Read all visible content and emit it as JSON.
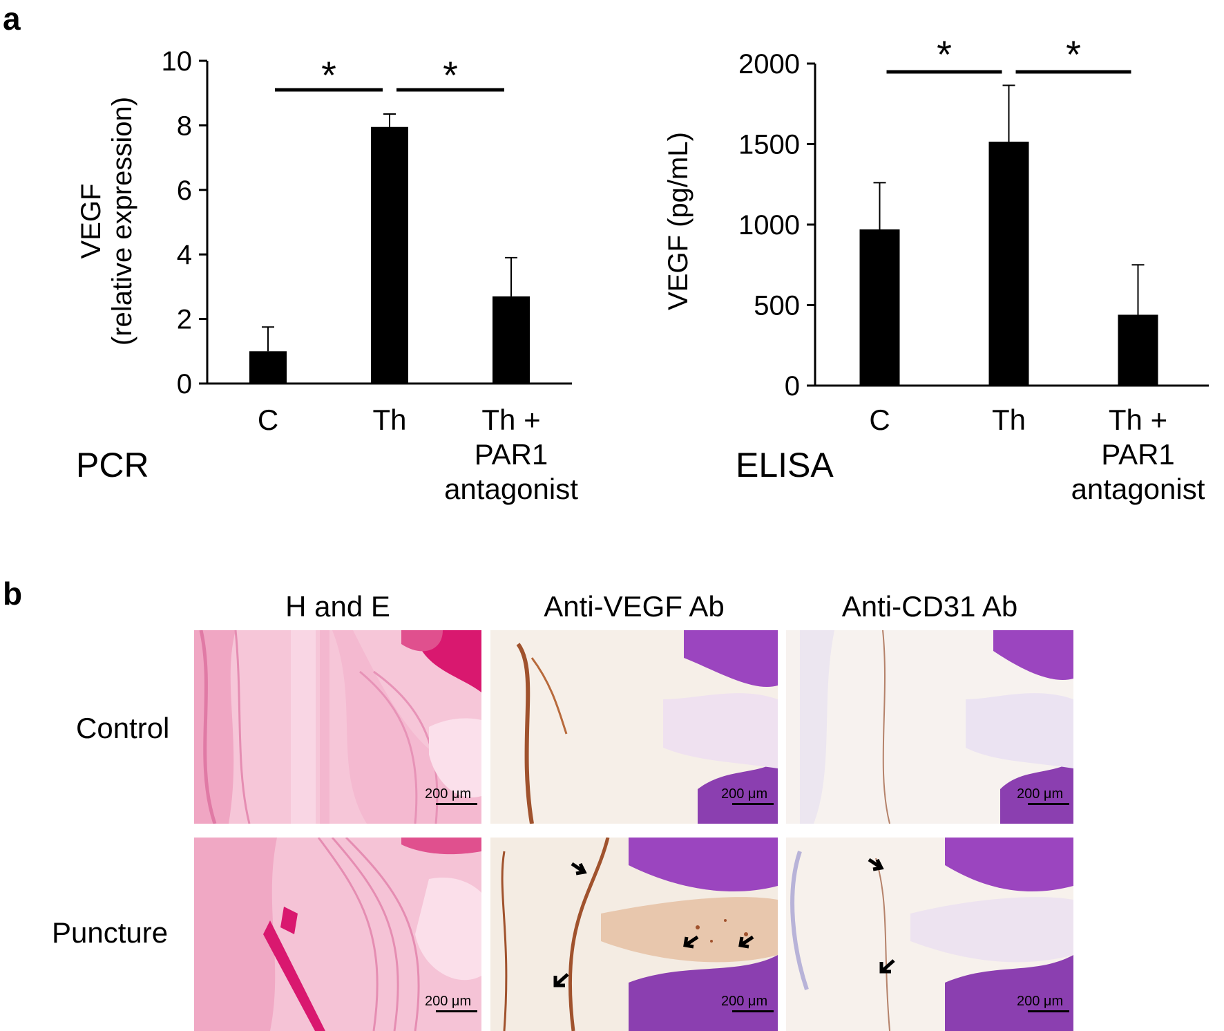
{
  "panel_a_label": "a",
  "panel_b_label": "b",
  "chart_data": [
    {
      "type": "bar",
      "title": "",
      "assay": "PCR",
      "categories": [
        "C",
        "Th",
        "Th + PAR1 antagonist"
      ],
      "category_lines": [
        [
          "C"
        ],
        [
          "Th"
        ],
        [
          "Th +",
          "PAR1",
          "antagonist"
        ]
      ],
      "values": [
        1.0,
        7.95,
        2.7
      ],
      "errors": [
        0.75,
        0.4,
        1.2
      ],
      "ylabel_lines": [
        "VEGF",
        "(relative expression)"
      ],
      "xlabel": "",
      "ylim": [
        0,
        10
      ],
      "yticks": [
        0,
        2,
        4,
        6,
        8,
        10
      ],
      "significance": [
        {
          "from": "C",
          "to": "Th",
          "label": "*"
        },
        {
          "from": "Th",
          "to": "Th + PAR1 antagonist",
          "label": "*"
        }
      ],
      "grid": false,
      "bar_color": "#000000"
    },
    {
      "type": "bar",
      "title": "",
      "assay": "ELISA",
      "categories": [
        "C",
        "Th",
        "Th + PAR1 antagonist"
      ],
      "category_lines": [
        [
          "C"
        ],
        [
          "Th"
        ],
        [
          "Th +",
          "PAR1",
          "antagonist"
        ]
      ],
      "values": [
        970,
        1515,
        440
      ],
      "errors": [
        290,
        350,
        310
      ],
      "ylabel_lines": [
        "VEGF (pg/mL)"
      ],
      "xlabel": "",
      "ylim": [
        0,
        2000
      ],
      "yticks": [
        0,
        500,
        1000,
        1500,
        2000
      ],
      "significance": [
        {
          "from": "C",
          "to": "Th",
          "label": "*"
        },
        {
          "from": "Th",
          "to": "Th + PAR1 antagonist",
          "label": "*"
        }
      ],
      "grid": false,
      "bar_color": "#000000"
    }
  ],
  "histology": {
    "columns": [
      "H and E",
      "Anti-VEGF Ab",
      "Anti-CD31 Ab"
    ],
    "rows": [
      "Control",
      "Puncture"
    ],
    "scale_bar_label": "200 μm",
    "colors": {
      "he_pink": "#f2a5c4",
      "he_magenta": "#d9186f",
      "ihc_background": "#f5ece4",
      "hematoxylin_purple": "#8b3fb0",
      "dab_brown": "#a0522d"
    }
  }
}
